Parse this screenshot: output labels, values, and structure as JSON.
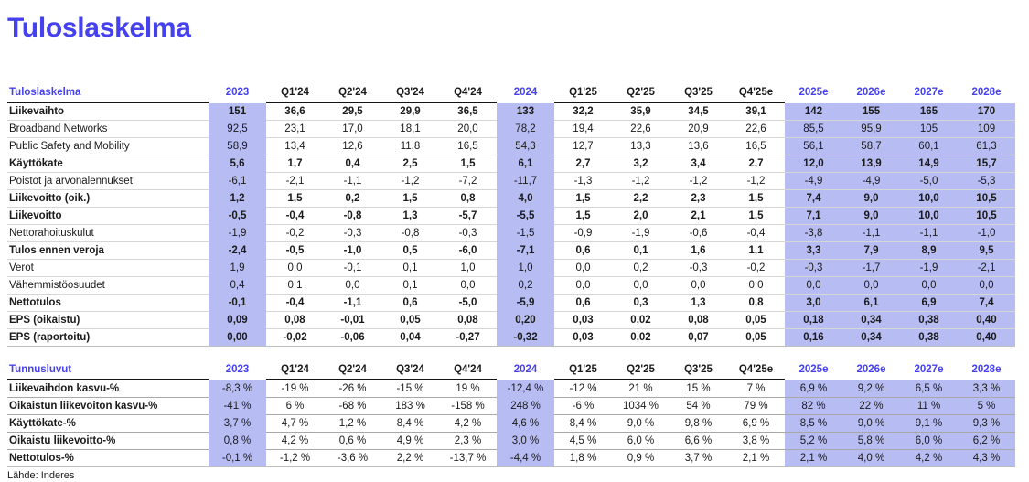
{
  "page_title": "Tuloslaskelma",
  "source": "Lähde: Inderes",
  "colors": {
    "accent": "#4641ee",
    "highlight": "#b7bcf3"
  },
  "columns": [
    "2023",
    "Q1'24",
    "Q2'24",
    "Q3'24",
    "Q4'24",
    "2024",
    "Q1'25",
    "Q2'25",
    "Q3'25",
    "Q4'25e",
    "2025e",
    "2026e",
    "2027e",
    "2028e"
  ],
  "highlight_columns": [
    0,
    5,
    10,
    11,
    12,
    13
  ],
  "continuous_highlight_columns": [
    0,
    5
  ],
  "tables": [
    {
      "header": "Tuloslaskelma",
      "rows": [
        {
          "label": "Liikevaihto",
          "bold": true,
          "values_bold": true,
          "values": [
            "151",
            "36,6",
            "29,5",
            "29,9",
            "36,5",
            "133",
            "32,2",
            "35,9",
            "34,5",
            "39,1",
            "142",
            "155",
            "165",
            "170"
          ]
        },
        {
          "label": "Broadband Networks",
          "bold": false,
          "values_bold": false,
          "values": [
            "92,5",
            "23,1",
            "17,0",
            "18,1",
            "20,0",
            "78,2",
            "19,4",
            "22,6",
            "20,9",
            "22,6",
            "85,5",
            "95,9",
            "105",
            "109"
          ]
        },
        {
          "label": "Public Safety and Mobility",
          "bold": false,
          "values_bold": false,
          "values": [
            "58,9",
            "13,4",
            "12,6",
            "11,8",
            "16,5",
            "54,3",
            "12,7",
            "13,3",
            "13,6",
            "16,5",
            "56,1",
            "58,7",
            "60,1",
            "61,3"
          ]
        },
        {
          "label": "Käyttökate",
          "bold": true,
          "values_bold": true,
          "values": [
            "5,6",
            "1,7",
            "0,4",
            "2,5",
            "1,5",
            "6,1",
            "2,7",
            "3,2",
            "3,4",
            "2,7",
            "12,0",
            "13,9",
            "14,9",
            "15,7"
          ]
        },
        {
          "label": "Poistot ja arvonalennukset",
          "bold": false,
          "values_bold": false,
          "values": [
            "-6,1",
            "-2,1",
            "-1,1",
            "-1,2",
            "-7,2",
            "-11,7",
            "-1,3",
            "-1,2",
            "-1,2",
            "-1,2",
            "-4,9",
            "-4,9",
            "-5,0",
            "-5,3"
          ]
        },
        {
          "label": "Liikevoitto (oik.)",
          "bold": true,
          "values_bold": true,
          "values": [
            "1,2",
            "1,5",
            "0,2",
            "1,5",
            "0,8",
            "4,0",
            "1,5",
            "2,2",
            "2,3",
            "1,5",
            "7,4",
            "9,0",
            "10,0",
            "10,5"
          ]
        },
        {
          "label": "Liikevoitto",
          "bold": true,
          "values_bold": true,
          "values": [
            "-0,5",
            "-0,4",
            "-0,8",
            "1,3",
            "-5,7",
            "-5,5",
            "1,5",
            "2,0",
            "2,1",
            "1,5",
            "7,1",
            "9,0",
            "10,0",
            "10,5"
          ]
        },
        {
          "label": "Nettorahoituskulut",
          "bold": false,
          "values_bold": false,
          "values": [
            "-1,9",
            "-0,2",
            "-0,3",
            "-0,8",
            "-0,3",
            "-1,5",
            "-0,9",
            "-1,9",
            "-0,6",
            "-0,4",
            "-3,8",
            "-1,1",
            "-1,1",
            "-1,0"
          ]
        },
        {
          "label": "Tulos ennen veroja",
          "bold": true,
          "values_bold": true,
          "values": [
            "-2,4",
            "-0,5",
            "-1,0",
            "0,5",
            "-6,0",
            "-7,1",
            "0,6",
            "0,1",
            "1,6",
            "1,1",
            "3,3",
            "7,9",
            "8,9",
            "9,5"
          ]
        },
        {
          "label": "Verot",
          "bold": false,
          "values_bold": false,
          "values": [
            "1,9",
            "0,0",
            "-0,1",
            "0,1",
            "1,0",
            "1,0",
            "0,0",
            "0,2",
            "-0,3",
            "-0,2",
            "-0,3",
            "-1,7",
            "-1,9",
            "-2,1"
          ]
        },
        {
          "label": "Vähemmistöosuudet",
          "bold": false,
          "values_bold": false,
          "values": [
            "0,4",
            "0,1",
            "0,0",
            "0,1",
            "0,0",
            "0,2",
            "0,0",
            "0,0",
            "0,0",
            "0,0",
            "0,0",
            "0,0",
            "0,0",
            "0,0"
          ]
        },
        {
          "label": "Nettotulos",
          "bold": true,
          "values_bold": true,
          "values": [
            "-0,1",
            "-0,4",
            "-1,1",
            "0,6",
            "-5,0",
            "-5,9",
            "0,6",
            "0,3",
            "1,3",
            "0,8",
            "3,0",
            "6,1",
            "6,9",
            "7,4"
          ]
        },
        {
          "label": "EPS (oikaistu)",
          "bold": true,
          "values_bold": true,
          "values": [
            "0,09",
            "0,08",
            "-0,01",
            "0,05",
            "0,08",
            "0,20",
            "0,03",
            "0,02",
            "0,08",
            "0,05",
            "0,18",
            "0,34",
            "0,38",
            "0,40"
          ]
        },
        {
          "label": "EPS (raportoitu)",
          "bold": true,
          "values_bold": true,
          "values": [
            "0,00",
            "-0,02",
            "-0,06",
            "0,04",
            "-0,27",
            "-0,32",
            "0,03",
            "0,02",
            "0,07",
            "0,05",
            "0,16",
            "0,34",
            "0,38",
            "0,40"
          ]
        }
      ]
    },
    {
      "header": "Tunnusluvut",
      "rows": [
        {
          "label": "Liikevaihdon kasvu-%",
          "bold": true,
          "values_bold": false,
          "values": [
            "-8,3 %",
            "-19 %",
            "-26 %",
            "-15 %",
            "19 %",
            "-12,4 %",
            "-12 %",
            "21 %",
            "15 %",
            "7 %",
            "6,9 %",
            "9,2 %",
            "6,5 %",
            "3,3 %"
          ]
        },
        {
          "label": "Oikaistun liikevoiton kasvu-%",
          "bold": true,
          "values_bold": false,
          "values": [
            "-41 %",
            "6 %",
            "-68 %",
            "183 %",
            "-158 %",
            "248 %",
            "-6 %",
            "1034 %",
            "54 %",
            "79 %",
            "82 %",
            "22 %",
            "11 %",
            "5 %"
          ]
        },
        {
          "label": "Käyttökate-%",
          "bold": true,
          "values_bold": false,
          "values": [
            "3,7 %",
            "4,7 %",
            "1,2 %",
            "8,4 %",
            "4,2 %",
            "4,6 %",
            "8,4 %",
            "9,0 %",
            "9,8 %",
            "6,9 %",
            "8,5 %",
            "9,0 %",
            "9,1 %",
            "9,3 %"
          ]
        },
        {
          "label": "Oikaistu liikevoitto-%",
          "bold": true,
          "values_bold": false,
          "values": [
            "0,8 %",
            "4,2 %",
            "0,6 %",
            "4,9 %",
            "2,3 %",
            "3,0 %",
            "4,5 %",
            "6,0 %",
            "6,6 %",
            "3,8 %",
            "5,2 %",
            "5,8 %",
            "6,0 %",
            "6,2 %"
          ]
        },
        {
          "label": "Nettotulos-%",
          "bold": true,
          "values_bold": false,
          "values": [
            "-0,1 %",
            "-1,2 %",
            "-3,6 %",
            "2,2 %",
            "-13,7 %",
            "-4,4 %",
            "1,8 %",
            "0,9 %",
            "3,7 %",
            "2,1 %",
            "2,1 %",
            "4,0 %",
            "4,2 %",
            "4,3 %"
          ]
        }
      ]
    }
  ]
}
